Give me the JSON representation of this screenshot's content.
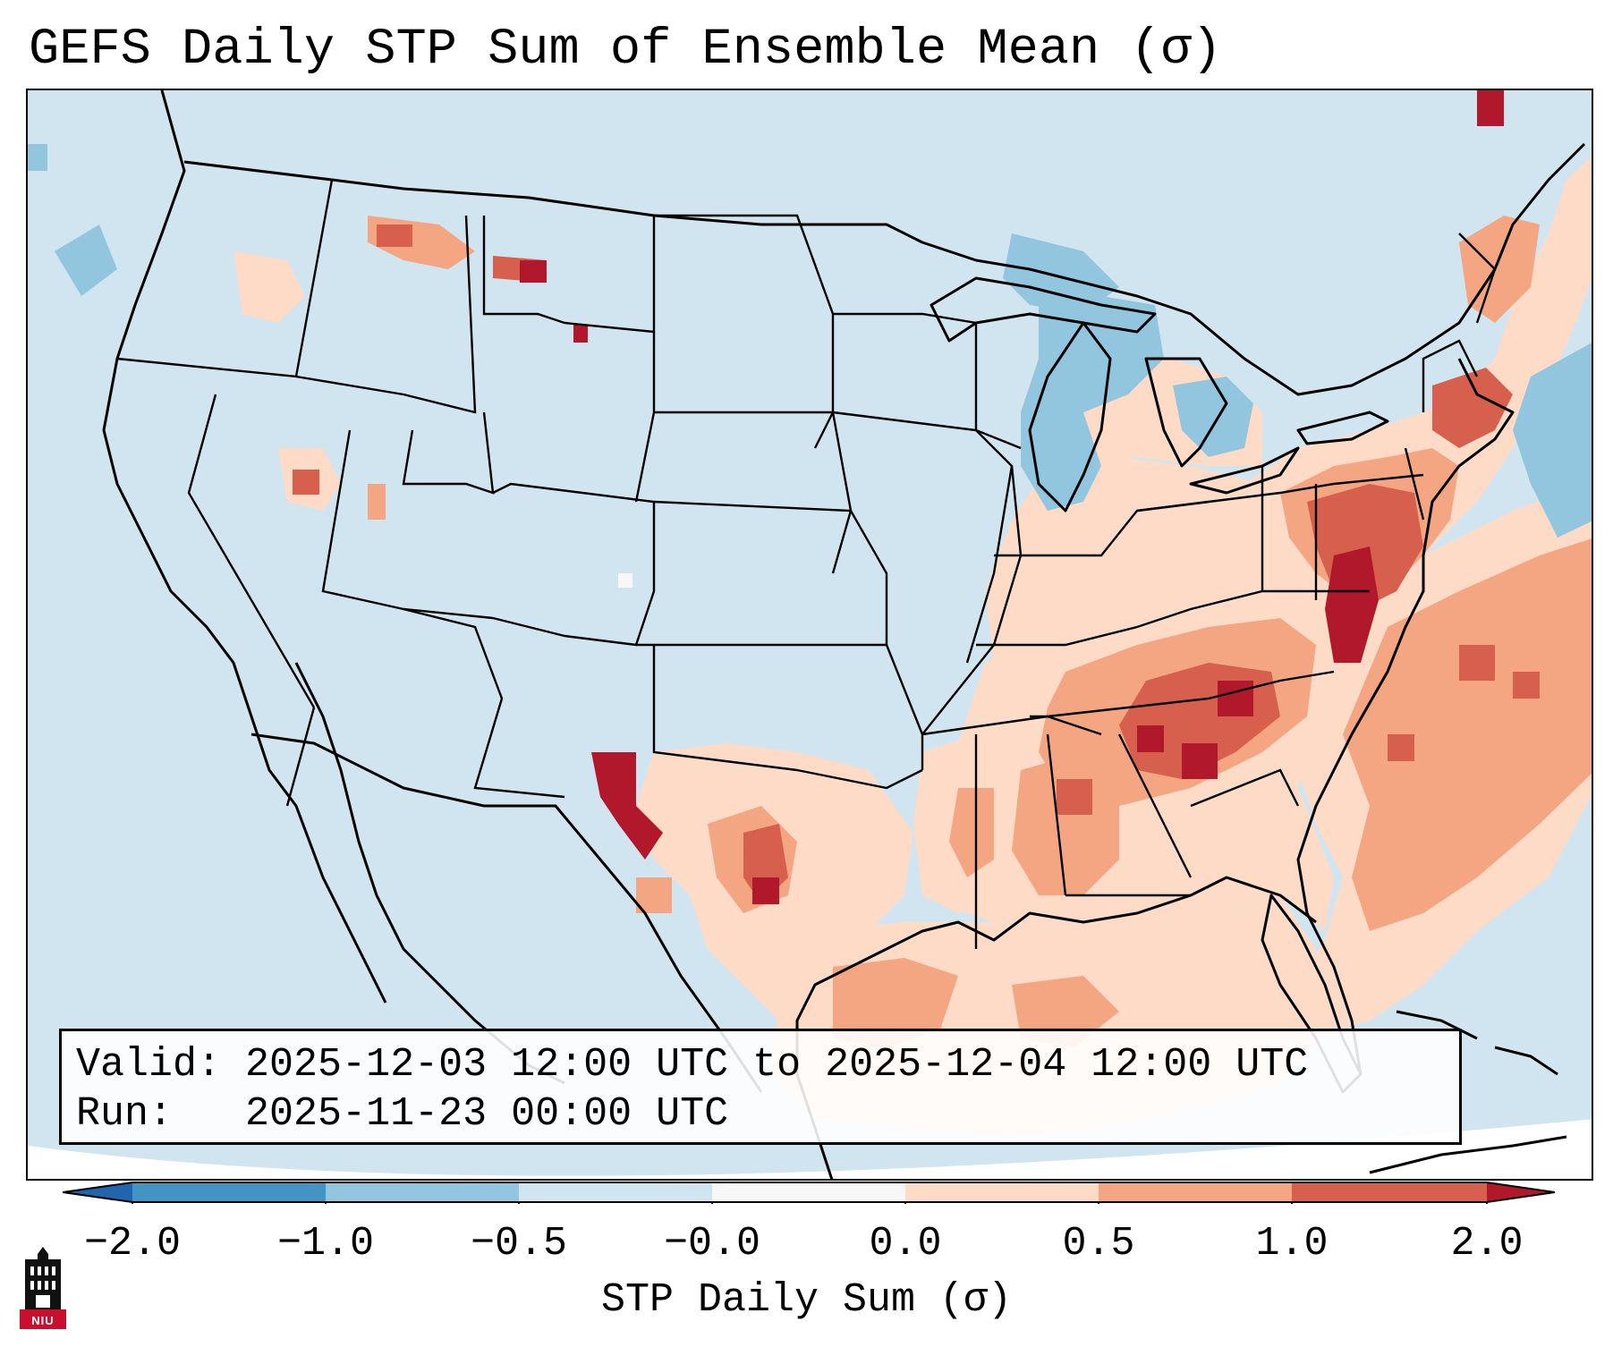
{
  "title": "GEFS Daily STP Sum of Ensemble Mean (σ)",
  "info": {
    "valid_label": "Valid:",
    "valid_value": "2025-12-03 12:00 UTC to 2025-12-04 12:00 UTC",
    "run_label": "Run:",
    "run_value": "2025-11-23 00:00 UTC"
  },
  "colorbar": {
    "label": "STP Daily Sum (σ)",
    "ticks": [
      "−2.0",
      "−1.0",
      "−0.5",
      "−0.0",
      "0.0",
      "0.5",
      "1.0",
      "2.0"
    ],
    "bins": [
      {
        "range": "< -2.0",
        "color": "#2166ac"
      },
      {
        "range": "-2.0 to -1.0",
        "color": "#4393c3"
      },
      {
        "range": "-1.0 to -0.5",
        "color": "#92c5de"
      },
      {
        "range": "-0.5 to -0.0",
        "color": "#d1e5f0"
      },
      {
        "range": "-0.0 to 0.0",
        "color": "#f7f7f7"
      },
      {
        "range": "0.0 to 0.5",
        "color": "#fddbc7"
      },
      {
        "range": "0.5 to 1.0",
        "color": "#f4a582"
      },
      {
        "range": "1.0 to 2.0",
        "color": "#d6604d"
      },
      {
        "range": "> 2.0",
        "color": "#b2182b"
      }
    ]
  },
  "map": {
    "region": "Contiguous United States",
    "background_color": "#d1e5f0",
    "anomaly_areas": [
      {
        "name": "southeast-us",
        "level": "0.5 to 2.0",
        "color": "#d6604d"
      },
      {
        "name": "mid-atlantic",
        "level": "1.0 to >2.0",
        "color": "#b2182b"
      },
      {
        "name": "gulf-of-mexico",
        "level": "0.0 to 1.0",
        "color": "#fddbc7"
      },
      {
        "name": "western-atlantic",
        "level": "0.0 to 2.0",
        "color": "#f4a582"
      },
      {
        "name": "great-lakes",
        "level": "-1.0 to -0.5",
        "color": "#92c5de"
      },
      {
        "name": "texas",
        "level": "0.5 to >2.0",
        "color": "#d6604d"
      },
      {
        "name": "northern-rockies",
        "level": "0.5 to >2.0",
        "color": "#f4a582"
      }
    ]
  },
  "logo": {
    "text": "NIU",
    "icon": "university-tower-icon"
  }
}
